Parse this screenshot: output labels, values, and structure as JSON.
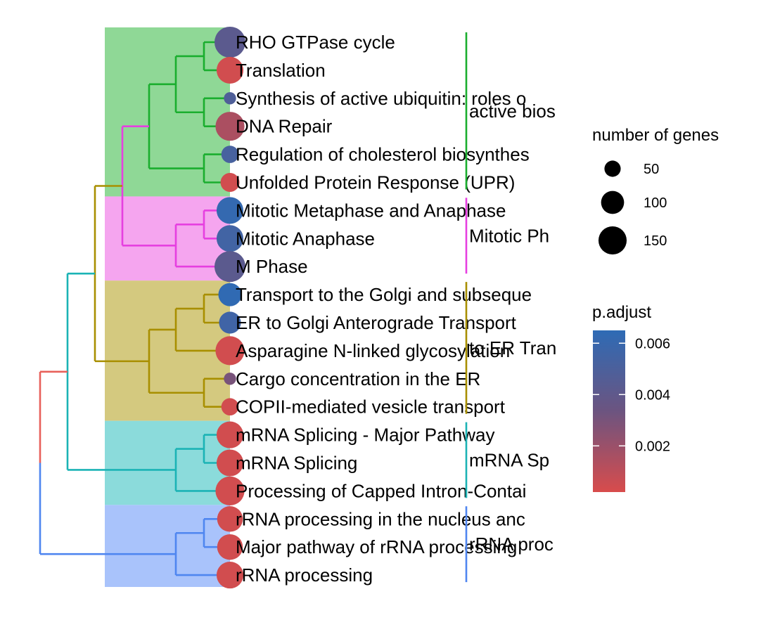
{
  "chart_data": {
    "type": "tree",
    "terms": [
      {
        "label": "RHO GTPase cycle",
        "count": 160,
        "p_adjust": 0.0042,
        "cluster": 0
      },
      {
        "label": "Translation",
        "count": 120,
        "p_adjust": 0.0004,
        "cluster": 0
      },
      {
        "label": "Synthesis of active ubiquitin: roles o",
        "count": 25,
        "p_adjust": 0.0048,
        "cluster": 0
      },
      {
        "label": "DNA Repair",
        "count": 140,
        "p_adjust": 0.0015,
        "cluster": 0
      },
      {
        "label": "Regulation of cholesterol biosynthes",
        "count": 50,
        "p_adjust": 0.0052,
        "cluster": 0
      },
      {
        "label": "Unfolded Protein Response (UPR)",
        "count": 60,
        "p_adjust": 0.0004,
        "cluster": 0
      },
      {
        "label": "Mitotic Metaphase and Anaphase",
        "count": 120,
        "p_adjust": 0.0062,
        "cluster": 1
      },
      {
        "label": "Mitotic Anaphase",
        "count": 120,
        "p_adjust": 0.0055,
        "cluster": 1
      },
      {
        "label": "M Phase",
        "count": 160,
        "p_adjust": 0.0042,
        "cluster": 1
      },
      {
        "label": "Transport to the Golgi and subseque",
        "count": 90,
        "p_adjust": 0.0064,
        "cluster": 2
      },
      {
        "label": "ER to Golgi Anterograde Transport",
        "count": 80,
        "p_adjust": 0.0056,
        "cluster": 2
      },
      {
        "label": "Asparagine N-linked glycosylation",
        "count": 140,
        "p_adjust": 0.0004,
        "cluster": 2
      },
      {
        "label": "Cargo concentration in the ER",
        "count": 25,
        "p_adjust": 0.003,
        "cluster": 2
      },
      {
        "label": "COPII-mediated vesicle transport",
        "count": 50,
        "p_adjust": 0.0004,
        "cluster": 2
      },
      {
        "label": "mRNA Splicing - Major Pathway",
        "count": 120,
        "p_adjust": 0.0004,
        "cluster": 3
      },
      {
        "label": "mRNA Splicing",
        "count": 120,
        "p_adjust": 0.0004,
        "cluster": 3
      },
      {
        "label": "Processing of Capped Intron-Contai",
        "count": 140,
        "p_adjust": 0.0004,
        "cluster": 3
      },
      {
        "label": "rRNA processing in the nucleus anc",
        "count": 110,
        "p_adjust": 0.0004,
        "cluster": 4
      },
      {
        "label": "Major pathway of rRNA processing",
        "count": 110,
        "p_adjust": 0.0004,
        "cluster": 4
      },
      {
        "label": "rRNA processing",
        "count": 120,
        "p_adjust": 0.0004,
        "cluster": 4
      }
    ],
    "clusters": [
      {
        "label": "active bios",
        "color": "#1aae2e",
        "fill": "#8fd896"
      },
      {
        "label": "Mitotic Ph",
        "color": "#e63fe0",
        "fill": "#f5a5ef"
      },
      {
        "label": "to ER Tran",
        "color": "#a88f00",
        "fill": "#d4c97f"
      },
      {
        "label": "mRNA Sp",
        "color": "#1bb3b5",
        "fill": "#8bdbdb"
      },
      {
        "label": "rRNA proc",
        "color": "#4f86f0",
        "fill": "#a9c3fb"
      }
    ],
    "tree_colors": {
      "root_top": "#e8605a",
      "root_bottom": "#4f86f0"
    },
    "legend_size": {
      "title": "number of genes",
      "breaks": [
        50,
        100,
        150
      ]
    },
    "legend_color": {
      "title": "p.adjust",
      "breaks": [
        0.002,
        0.004,
        0.006
      ],
      "breaks_text": [
        "0.002",
        "0.004",
        "0.006"
      ],
      "limits": [
        0.0002,
        0.0065
      ],
      "low_color": "#d84c4c",
      "high_color": "#2e6bb5"
    }
  }
}
